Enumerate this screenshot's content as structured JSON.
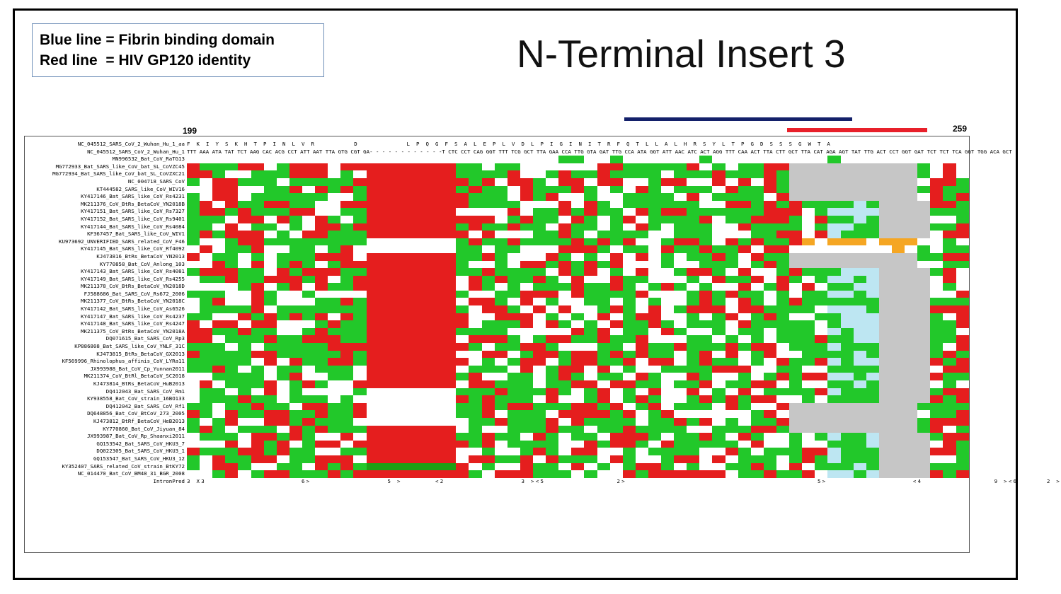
{
  "slide": {
    "legend_line1": "Blue line = Fibrin binding domain",
    "legend_line2": "Red line  = HIV GP120 identity",
    "title": "N-Terminal Insert 3",
    "colors": {
      "blue_line": "#13206a",
      "red_line": "#e8202a",
      "match": "#22c82a",
      "mismatch": "#e51e1e",
      "gap": "#c6c6c6",
      "highlight": "#f5a623"
    }
  },
  "alignment": {
    "start_position": "199",
    "end_position": "259",
    "aa_label": "NC_045512_SARS_CoV_2_Wuhan_Hu_1_aa",
    "aa_sequence": "F K I Y S K H T P I N L V R        D          L P Q G F S A L E P L V D L P I G I N I T R F Q T L L A L H R S Y L T P G D S S S G W T A",
    "ref_label": "NC_045512_SARS_CoV_2_Wuhan_Hu_1",
    "ref_sequence": "TTT AAA ATA TAT TCT AAG CAC ACG CCT ATT AAT TTA GTG CGT GA- - - - - - - - - - - -T CTC CCT CAG GGT TTT TCG GCT TTA GAA CCA TTG GTA GAT TTG CCA ATA GGT ATT AAC ATC ACT AGG TTT CAA ACT TTA CTT GCT TTA CAT AGA AGT TAT TTG ACT CCT GGT GAT TCT TCT TCA GGT TGG ACA GCT",
    "rows": [
      {
        "label": "MN996532_Bat_CoV_RaTG13",
        "pattern": "m"
      },
      {
        "label": "MG772933_Bat_SARS_like_CoV_bat_SL_CoVZC45",
        "pattern": "xg"
      },
      {
        "label": "MG772934_Bat_SARS_like_CoV_bat_SL_CoVZXC21",
        "pattern": "xg"
      },
      {
        "label": "NC_004718_SARS_CoV",
        "pattern": "xg"
      },
      {
        "label": "KT444582_SARS_like_CoV_WIV16",
        "pattern": "xg"
      },
      {
        "label": "KY417146_Bat_SARS_like_CoV_Rs4231",
        "pattern": "xg"
      },
      {
        "label": "MK211376_CoV_BtRs_BetaCoV_YN2018B",
        "pattern": "xr"
      },
      {
        "label": "KY417151_Bat_SARS_like_CoV_Rs7327",
        "pattern": "xr"
      },
      {
        "label": "KY417152_Bat_SARS_like_CoV_Rs9401",
        "pattern": "xr"
      },
      {
        "label": "KY417144_Bat_SARS_like_CoV_Rs4084",
        "pattern": "xr"
      },
      {
        "label": "KF367457_Bat_SARS_like_CoV_WIV1",
        "pattern": "xr"
      },
      {
        "label": "KU973692_UNVERIFIED_SARS_related_CoV_F46",
        "pattern": "o"
      },
      {
        "label": "KY417145_Bat_SARS_like_CoV_Rf4092",
        "pattern": "o"
      },
      {
        "label": "KJ473816_BtRs_BetaCoV_YN2013",
        "pattern": "xg"
      },
      {
        "label": "KY770858_Bat_CoV_Anlong_103",
        "pattern": "xg"
      },
      {
        "label": "KY417143_Bat_SARS_like_CoV_Rs4081",
        "pattern": "xr"
      },
      {
        "label": "KY417149_Bat_SARS_like_CoV_Rs4255",
        "pattern": "xr"
      },
      {
        "label": "MK211378_CoV_BtRs_BetaCoV_YN2018D",
        "pattern": "xr"
      },
      {
        "label": "FJ588686_Bat_SARS_CoV_Rs672_2006",
        "pattern": "xr"
      },
      {
        "label": "MK211377_CoV_BtRs_BetaCoV_YN2018C",
        "pattern": "xr"
      },
      {
        "label": "KY417142_Bat_SARS_like_CoV_As6526",
        "pattern": "xr"
      },
      {
        "label": "KY417147_Bat_SARS_like_CoV_Rs4237",
        "pattern": "xr"
      },
      {
        "label": "KY417148_Bat_SARS_like_CoV_Rs4247",
        "pattern": "xr"
      },
      {
        "label": "MK211375_CoV_BtRs_BetaCoV_YN2018A",
        "pattern": "xr"
      },
      {
        "label": "DQ071615_Bat_SARS_CoV_Rp3",
        "pattern": "xr"
      },
      {
        "label": "KP886808_Bat_SARS_like_CoV_YNLF_31C",
        "pattern": "xr"
      },
      {
        "label": "KJ473815_BtRs_BetaCoV_GX2013",
        "pattern": "xr"
      },
      {
        "label": "KF569996_Rhinolophus_affinis_CoV_LYRa11",
        "pattern": "xr"
      },
      {
        "label": "JX993988_Bat_CoV_Cp_Yunnan2011",
        "pattern": "xr"
      },
      {
        "label": "MK211374_CoV_BtRl_BetaCoV_SC2018",
        "pattern": "xr"
      },
      {
        "label": "KJ473814_BtRs_BetaCoV_HuB2013",
        "pattern": "xr"
      },
      {
        "label": "DQ412043_Bat_SARS_CoV_Rm1",
        "pattern": "xr"
      },
      {
        "label": "KY938558_Bat_CoV_strain_16BO133",
        "pattern": "xr"
      },
      {
        "label": "DQ412042_Bat_SARS_CoV_Rf1",
        "pattern": "xg"
      },
      {
        "label": "DQ648856_Bat_CoV_BtCoV_273_2005",
        "pattern": "xg"
      },
      {
        "label": "KJ473812_BtRf_BetaCoV_HeB2013",
        "pattern": "xg"
      },
      {
        "label": "KY770860_Bat_CoV_Jiyuan_84",
        "pattern": "xg"
      },
      {
        "label": "JX993987_Bat_CoV_Rp_Shaanxi2011",
        "pattern": "xr"
      },
      {
        "label": "GQ153542_Bat_SARS_CoV_HKU3_7",
        "pattern": "xr"
      },
      {
        "label": "DQ022305_Bat_SARS_CoV_HKU3_1",
        "pattern": "xr"
      },
      {
        "label": "GQ153547_Bat_SARS_CoV_HKU3_12",
        "pattern": "xr"
      },
      {
        "label": "KY352407_SARS_related_CoV_strain_BtKY72",
        "pattern": "gd"
      },
      {
        "label": "NC_014470_Bat_CoV_BM48_31_BGR_2008",
        "pattern": "xr"
      }
    ],
    "intron_label": "IntronPred",
    "intron_markers": "3 X3                    6>                5 >       <2                3 ><5               2>                                        5>                  <4               9 ><6      2 >"
  }
}
